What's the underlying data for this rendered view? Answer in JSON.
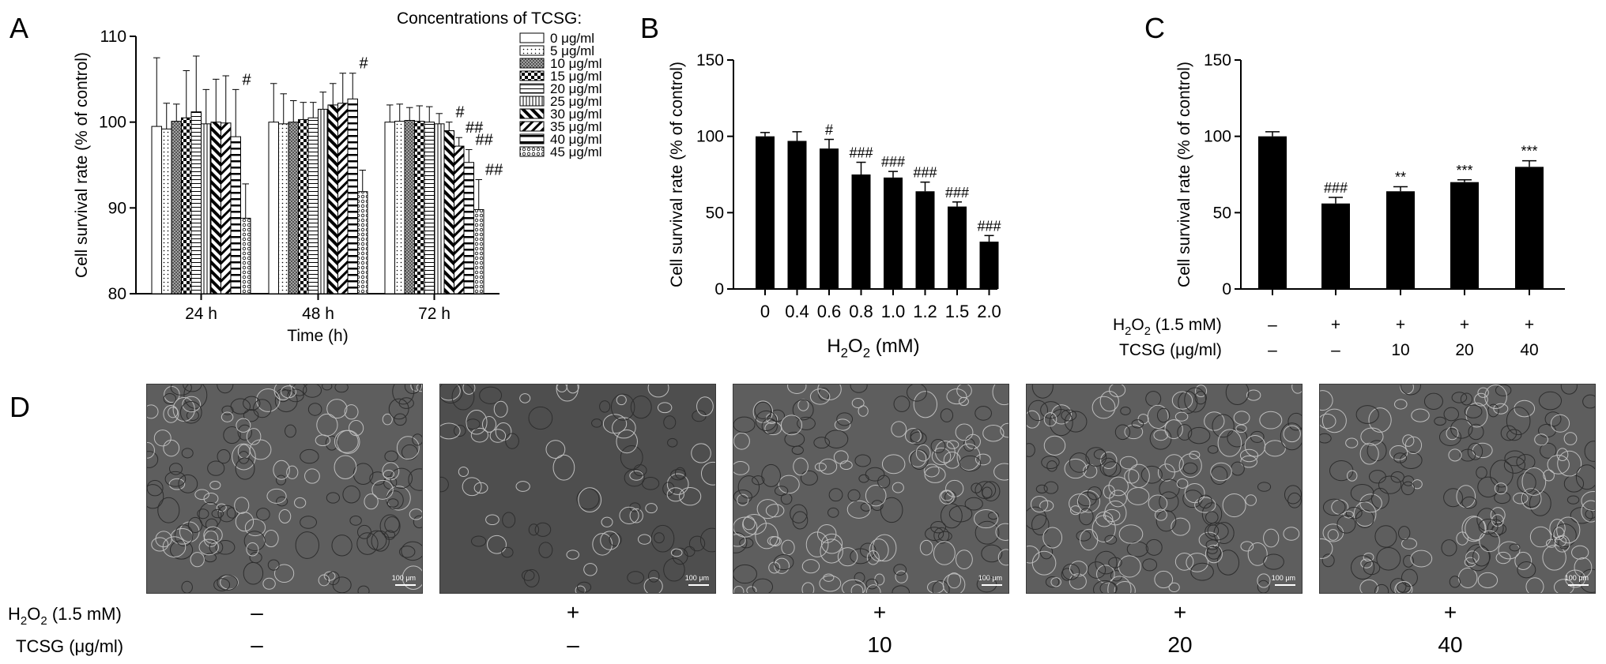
{
  "panels": {
    "A": "A",
    "B": "B",
    "C": "C",
    "D": "D"
  },
  "colors": {
    "bar": "#000000",
    "panel_bg": "#5a5a5a"
  },
  "chart_data": [
    {
      "panel": "A",
      "type": "bar",
      "ylabel": "Cell survival rate (% of control)",
      "xlabel": "Time (h)",
      "ylim": [
        80,
        110
      ],
      "yticks": [
        80,
        90,
        100,
        110
      ],
      "categories": [
        "24 h",
        "48 h",
        "72 h"
      ],
      "legend_title": "Concentrations of TCSG:",
      "legend_position": "top-right",
      "series": [
        {
          "name": "0 μg/ml",
          "pattern": "white",
          "values": [
            99.5,
            100.0,
            100.0
          ],
          "errors": [
            8.0,
            4.5,
            2.0
          ]
        },
        {
          "name": "5 μg/ml",
          "pattern": "dots",
          "values": [
            99.2,
            99.8,
            100.1
          ],
          "errors": [
            3.0,
            3.5,
            2.0
          ]
        },
        {
          "name": "10 μg/ml",
          "pattern": "dense",
          "values": [
            100.1,
            100.0,
            100.2
          ],
          "errors": [
            2.0,
            2.5,
            1.5
          ]
        },
        {
          "name": "15 μg/ml",
          "pattern": "checker",
          "values": [
            100.5,
            100.3,
            100.1
          ],
          "errors": [
            5.5,
            2.0,
            1.8
          ]
        },
        {
          "name": "20 μg/ml",
          "pattern": "hlines",
          "values": [
            101.2,
            100.5,
            100.0
          ],
          "errors": [
            6.5,
            1.8,
            1.8
          ]
        },
        {
          "name": "25 μg/ml",
          "pattern": "vlines",
          "values": [
            99.8,
            101.5,
            99.8
          ],
          "errors": [
            4.0,
            2.0,
            1.2
          ]
        },
        {
          "name": "30 μg/ml",
          "pattern": "diagbold",
          "values": [
            100.0,
            102.0,
            99.0
          ],
          "errors": [
            5.0,
            2.5,
            1.0
          ]
        },
        {
          "name": "35 μg/ml",
          "pattern": "diag",
          "values": [
            99.9,
            102.2,
            97.2
          ],
          "errors": [
            5.5,
            3.5,
            1.0
          ]
        },
        {
          "name": "40 μg/ml",
          "pattern": "thickh",
          "values": [
            98.3,
            102.7,
            95.3
          ],
          "errors": [
            5.5,
            3.0,
            1.5
          ]
        },
        {
          "name": "45 μg/ml",
          "pattern": "circles",
          "values": [
            88.8,
            91.9,
            89.8
          ],
          "errors": [
            4.0,
            2.5,
            3.5
          ]
        }
      ],
      "annotations": [
        {
          "category": "24 h",
          "series": "40 μg/ml",
          "text": "#"
        },
        {
          "category": "48 h",
          "series": "40 μg/ml",
          "text": "#"
        },
        {
          "category": "72 h",
          "series": "30 μg/ml",
          "text": "#"
        },
        {
          "category": "72 h",
          "series": "35 μg/ml",
          "text": "##"
        },
        {
          "category": "72 h",
          "series": "40 μg/ml",
          "text": "##"
        },
        {
          "category": "72 h",
          "series": "45 μg/ml",
          "text": "##"
        }
      ]
    },
    {
      "panel": "B",
      "type": "bar",
      "ylabel": "Cell survival rate (% of control)",
      "xlabel_main": "H",
      "xlabel_sub": "2",
      "xlabel_mid": "O",
      "xlabel_sub2": "2",
      "xlabel_unit": " (mM)",
      "ylim": [
        0,
        150
      ],
      "yticks": [
        0,
        50,
        100,
        150
      ],
      "categories": [
        "0",
        "0.4",
        "0.6",
        "0.8",
        "1.0",
        "1.2",
        "1.5",
        "2.0"
      ],
      "values": [
        100,
        97,
        92,
        75,
        73,
        64,
        54,
        31
      ],
      "errors": [
        2.5,
        6,
        6,
        8,
        4,
        6,
        3,
        4
      ],
      "annotations": [
        "",
        "",
        "#",
        "###",
        "###",
        "###",
        "###",
        "###"
      ]
    },
    {
      "panel": "C",
      "type": "bar",
      "ylabel": "Cell survival rate (% of control)",
      "ylim": [
        0,
        150
      ],
      "yticks": [
        0,
        50,
        100,
        150
      ],
      "values": [
        100,
        56,
        64,
        70,
        80
      ],
      "errors": [
        3,
        4,
        3,
        1.5,
        4
      ],
      "annotations": [
        "",
        "###",
        "**",
        "***",
        "***"
      ],
      "row1_label_main": "H",
      "row1_label_sub": "2",
      "row1_label_mid": "O",
      "row1_label_sub2": "2",
      "row1_label_unit": " (1.5 mM)",
      "row1_values": [
        "–",
        "+",
        "+",
        "+",
        "+"
      ],
      "row2_label": "TCSG (μg/ml)",
      "row2_values": [
        "–",
        "–",
        "10",
        "20",
        "40"
      ]
    }
  ],
  "panelD": {
    "row1_label_main": "H",
    "row1_label_sub": "2",
    "row1_label_mid": "O",
    "row1_label_sub2": "2",
    "row1_label_unit": " (1.5 mM)",
    "row2_label": "TCSG (μg/ml)",
    "row1_values": [
      "–",
      "+",
      "+",
      "+",
      "+"
    ],
    "row2_values": [
      "–",
      "–",
      "10",
      "20",
      "40"
    ],
    "scale_label": "100 μm"
  }
}
